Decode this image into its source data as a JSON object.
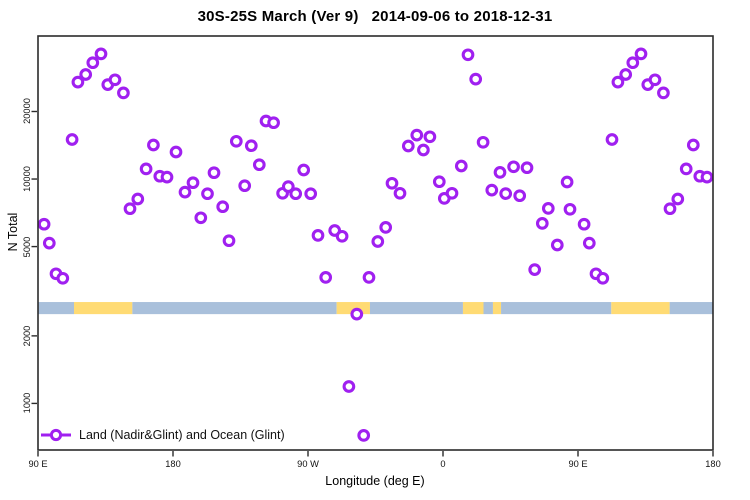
{
  "title": "30S-25S March (Ver 9)   2014-09-06 to 2018-12-31",
  "colors": {
    "point": "#A020F0",
    "ocean_band": "#A9C0DB",
    "land_band": "#FFDB74",
    "axis": "#2B2B2B",
    "text": "#000000",
    "background": "#FFFFFF"
  },
  "chart_data": {
    "type": "scatter",
    "title": "30S-25S March (Ver 9)   2014-09-06 to 2018-12-31",
    "xlabel": "Longitude (deg E)",
    "ylabel": "N Total",
    "grid": false,
    "x_axis": {
      "range": [
        90,
        540
      ],
      "ticks": [
        90,
        180,
        270,
        360,
        450,
        540
      ],
      "tick_labels": [
        "90 E",
        "180",
        "90 W",
        "0",
        "90 E",
        "180"
      ]
    },
    "y_axis": {
      "scale": "log",
      "range": [
        620,
        43400
      ],
      "ticks": [
        1000,
        2000,
        5000,
        10000,
        20000
      ],
      "tick_labels": [
        "1000",
        "2000",
        "5000",
        "10000",
        "20000"
      ]
    },
    "legend": {
      "label": "Land (Nadir&Glint) and Ocean (Glint)",
      "position": "bottom-left"
    },
    "surface_band": {
      "note": "horizontal strip marking land(yellow)/ocean(blue) vs longitude",
      "n_top": 2830,
      "n_bottom": 2500,
      "segments": [
        {
          "type": "ocean",
          "from": 90,
          "to": 114
        },
        {
          "type": "land",
          "from": 114,
          "to": 152.9
        },
        {
          "type": "ocean",
          "from": 152.9,
          "to": 289.1
        },
        {
          "type": "land",
          "from": 289.1,
          "to": 311.3
        },
        {
          "type": "ocean",
          "from": 311.3,
          "to": 373.3
        },
        {
          "type": "land",
          "from": 373.3,
          "to": 387.0
        },
        {
          "type": "ocean",
          "from": 387.0,
          "to": 393.3
        },
        {
          "type": "land",
          "from": 393.3,
          "to": 398.7
        },
        {
          "type": "ocean",
          "from": 398.7,
          "to": 472.2
        },
        {
          "type": "land",
          "from": 472.2,
          "to": 511.1
        },
        {
          "type": "ocean",
          "from": 511.1,
          "to": 540
        }
      ]
    },
    "series": [
      {
        "name": "Land (Nadir&Glint) and Ocean (Glint)",
        "marker": "open-circle",
        "color": "#A020F0",
        "points": [
          [
            94.1,
            6290
          ],
          [
            97.5,
            5180
          ],
          [
            102,
            3780
          ],
          [
            106.5,
            3610
          ],
          [
            112.7,
            15000
          ],
          [
            116.6,
            27050
          ],
          [
            121.8,
            29250
          ],
          [
            126.5,
            33000
          ],
          [
            132,
            36100
          ],
          [
            136.5,
            26350
          ],
          [
            141.3,
            27700
          ],
          [
            146.9,
            24200
          ],
          [
            151.3,
            7375
          ],
          [
            156.5,
            8150
          ],
          [
            162.1,
            11100
          ],
          [
            166.9,
            14180
          ],
          [
            171.2,
            10300
          ],
          [
            176,
            10200
          ],
          [
            182,
            13200
          ],
          [
            188,
            8750
          ],
          [
            193.3,
            9630
          ],
          [
            198.5,
            6720
          ],
          [
            203,
            8600
          ],
          [
            207.3,
            10670
          ],
          [
            213.1,
            7525
          ],
          [
            217.3,
            5310
          ],
          [
            222.2,
            14730
          ],
          [
            227.8,
            9340
          ],
          [
            232.2,
            14080
          ],
          [
            237.5,
            11580
          ],
          [
            242,
            18140
          ],
          [
            247.1,
            17830
          ],
          [
            253.1,
            8640
          ],
          [
            256.9,
            9250
          ],
          [
            261.8,
            8600
          ],
          [
            267.1,
            10970
          ],
          [
            271.8,
            8600
          ],
          [
            276.7,
            5610
          ],
          [
            281.8,
            3645
          ],
          [
            287.8,
            5900
          ],
          [
            292.7,
            5555
          ],
          [
            297.3,
            1190
          ],
          [
            302.5,
            2500
          ],
          [
            307.1,
            720
          ],
          [
            310.7,
            3645
          ],
          [
            316.5,
            5270
          ],
          [
            321.8,
            6090
          ],
          [
            326,
            9570
          ],
          [
            331.3,
            8640
          ],
          [
            336.9,
            14030
          ],
          [
            342.5,
            15700
          ],
          [
            346.9,
            13470
          ],
          [
            351.3,
            15430
          ],
          [
            357.5,
            9730
          ],
          [
            360.9,
            8200
          ],
          [
            366,
            8640
          ],
          [
            372.2,
            11430
          ],
          [
            376.7,
            35800
          ],
          [
            381.8,
            27900
          ],
          [
            386.7,
            14580
          ],
          [
            392.5,
            8930
          ],
          [
            398,
            10710
          ],
          [
            401.8,
            8610
          ],
          [
            407.1,
            11340
          ],
          [
            411.1,
            8430
          ],
          [
            416,
            11230
          ],
          [
            421.1,
            3950
          ],
          [
            426.2,
            6340
          ],
          [
            430.2,
            7400
          ],
          [
            436.2,
            5080
          ],
          [
            442.7,
            9700
          ],
          [
            444.7,
            7330
          ],
          [
            454.1,
            6290
          ],
          [
            457.5,
            5180
          ],
          [
            462,
            3780
          ],
          [
            466.5,
            3610
          ],
          [
            472.7,
            15000
          ],
          [
            476.6,
            27050
          ],
          [
            481.8,
            29250
          ],
          [
            486.5,
            33000
          ],
          [
            492,
            36100
          ],
          [
            496.5,
            26350
          ],
          [
            501.3,
            27700
          ],
          [
            506.9,
            24200
          ],
          [
            511.3,
            7375
          ],
          [
            516.5,
            8150
          ],
          [
            522.1,
            11100
          ],
          [
            526.9,
            14180
          ],
          [
            531.2,
            10300
          ],
          [
            536,
            10200
          ]
        ]
      }
    ]
  }
}
